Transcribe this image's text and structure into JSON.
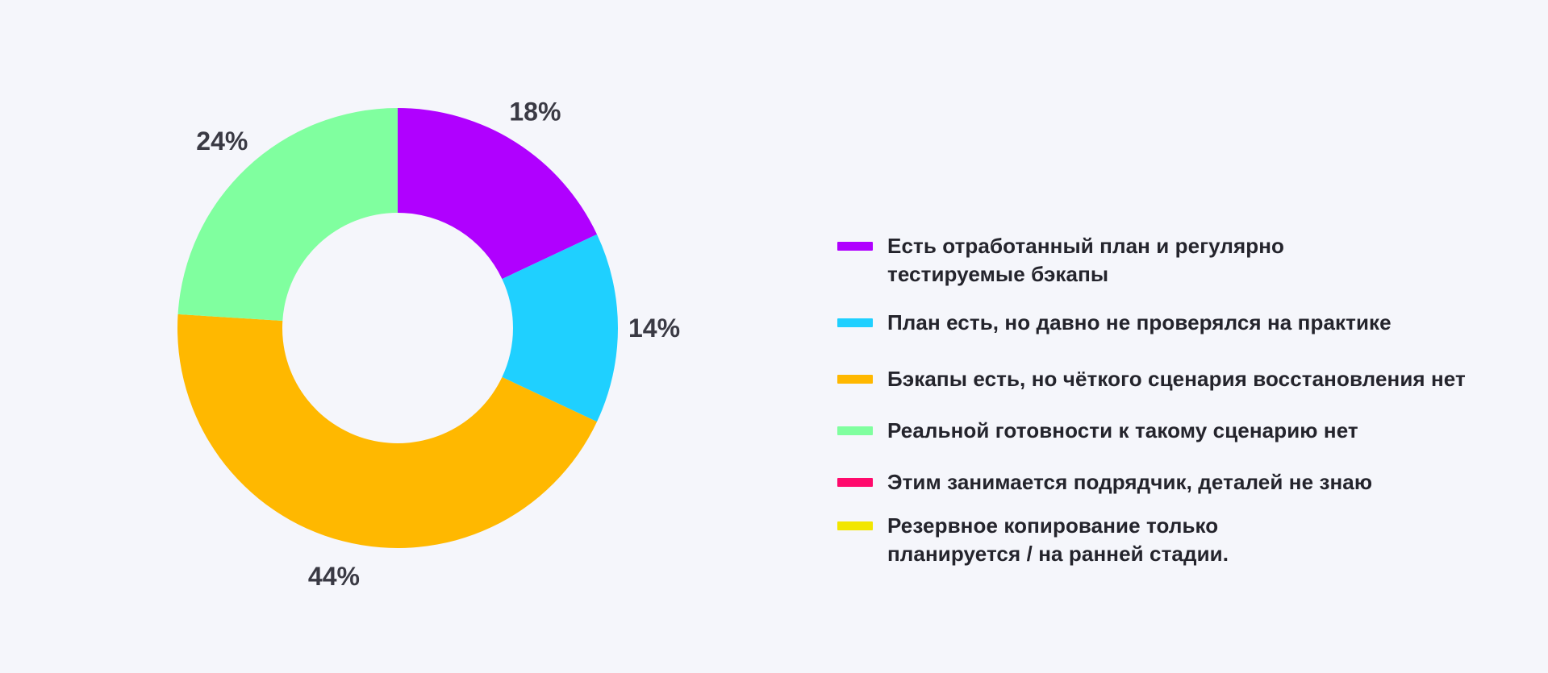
{
  "chart_data": {
    "type": "pie",
    "donut": true,
    "slices": [
      {
        "label": "Есть отработанный план и регулярно тестируемые бэкапы",
        "value": 18,
        "value_label": "18%",
        "color": "#b000ff"
      },
      {
        "label": "План есть, но давно не проверялся на практике",
        "value": 14,
        "value_label": "14%",
        "color": "#1fd0ff"
      },
      {
        "label": "Бэкапы есть, но чёткого сценария восстановления нет",
        "value": 44,
        "value_label": "44%",
        "color": "#ffb800"
      },
      {
        "label": "Реальной готовности к такому сценарию нет",
        "value": 24,
        "value_label": "24%",
        "color": "#80ff9f"
      },
      {
        "label": "Этим занимается подрядчик, деталей не знаю",
        "value": 0,
        "value_label": "",
        "color": "#ff0a6c"
      },
      {
        "label": "Резервное копирование только планируется / на ранней стадии.",
        "value": 0,
        "value_label": "",
        "color": "#f2e600"
      }
    ],
    "legend_position": "right",
    "start_angle": "top",
    "direction": "clockwise"
  },
  "legend": {
    "items": [
      {
        "line1": "Есть отработанный план и регулярно",
        "line2": "тестируемые бэкапы",
        "color": "#b000ff"
      },
      {
        "line1": "План есть, но давно не проверялся на практике",
        "line2": "",
        "color": "#1fd0ff"
      },
      {
        "line1": "Бэкапы есть, но чёткого сценария восстановления нет",
        "line2": "",
        "color": "#ffb800"
      },
      {
        "line1": "Реальной готовности к такому сценарию нет",
        "line2": "",
        "color": "#80ff9f"
      },
      {
        "line1": "Этим занимается подрядчик, деталей не знаю",
        "line2": "",
        "color": "#ff0a6c"
      },
      {
        "line1": "Резервное копирование только",
        "line2": "планируется / на ранней стадии.",
        "color": "#f2e600"
      }
    ]
  }
}
